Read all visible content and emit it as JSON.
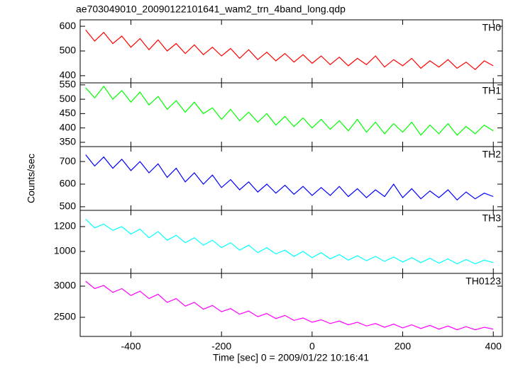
{
  "chart_data": [
    {
      "type": "line",
      "title": "ae703049010_20090122101641_wam2_trn_4band_long.qdp",
      "x": [
        -500,
        -480,
        -460,
        -440,
        -420,
        -400,
        -380,
        -360,
        -340,
        -320,
        -300,
        -280,
        -260,
        -240,
        -220,
        -200,
        -180,
        -160,
        -140,
        -120,
        -100,
        -80,
        -60,
        -40,
        -20,
        0,
        20,
        40,
        60,
        80,
        100,
        120,
        140,
        160,
        180,
        200,
        220,
        240,
        260,
        280,
        300,
        320,
        340,
        360,
        380,
        400
      ],
      "series": [
        {
          "name": "TH0",
          "color": "#ff0000",
          "values": [
            585,
            540,
            575,
            530,
            560,
            515,
            550,
            505,
            545,
            500,
            530,
            490,
            525,
            485,
            515,
            480,
            510,
            470,
            505,
            465,
            495,
            460,
            490,
            455,
            485,
            450,
            480,
            445,
            475,
            440,
            470,
            445,
            480,
            435,
            465,
            440,
            470,
            430,
            460,
            435,
            465,
            430,
            455,
            425,
            460,
            440
          ]
        }
      ],
      "xlim": [
        -512,
        420
      ],
      "xticks": [
        -400,
        -200,
        0,
        200,
        400
      ],
      "ylim": [
        371,
        626
      ],
      "yticks": [
        400,
        500,
        600
      ]
    },
    {
      "type": "line",
      "x": [
        -500,
        -480,
        -460,
        -440,
        -420,
        -400,
        -380,
        -360,
        -340,
        -320,
        -300,
        -280,
        -260,
        -240,
        -220,
        -200,
        -180,
        -160,
        -140,
        -120,
        -100,
        -80,
        -60,
        -40,
        -20,
        0,
        20,
        40,
        60,
        80,
        100,
        120,
        140,
        160,
        180,
        200,
        220,
        240,
        260,
        280,
        300,
        320,
        340,
        360,
        380,
        400
      ],
      "series": [
        {
          "name": "TH1",
          "color": "#00ff00",
          "values": [
            540,
            505,
            545,
            500,
            530,
            490,
            525,
            480,
            510,
            465,
            495,
            455,
            490,
            450,
            470,
            430,
            465,
            425,
            455,
            420,
            450,
            410,
            440,
            405,
            435,
            400,
            430,
            395,
            425,
            390,
            430,
            385,
            420,
            380,
            415,
            385,
            420,
            375,
            410,
            380,
            415,
            375,
            405,
            380,
            410,
            390
          ]
        }
      ],
      "xlim": [
        -512,
        420
      ],
      "xticks": [
        -400,
        -200,
        0,
        200,
        400
      ],
      "ylim": [
        335,
        557
      ],
      "yticks": [
        350,
        400,
        450,
        500,
        550
      ]
    },
    {
      "type": "line",
      "ylabel": "Counts/sec",
      "x": [
        -500,
        -480,
        -460,
        -440,
        -420,
        -400,
        -380,
        -360,
        -340,
        -320,
        -300,
        -280,
        -260,
        -240,
        -220,
        -200,
        -180,
        -160,
        -140,
        -120,
        -100,
        -80,
        -60,
        -40,
        -20,
        0,
        20,
        40,
        60,
        80,
        100,
        120,
        140,
        160,
        180,
        200,
        220,
        240,
        260,
        280,
        300,
        320,
        340,
        360,
        380,
        400
      ],
      "series": [
        {
          "name": "TH2",
          "color": "#0000ff",
          "values": [
            730,
            680,
            720,
            670,
            710,
            660,
            700,
            650,
            690,
            630,
            670,
            610,
            650,
            600,
            640,
            585,
            620,
            575,
            610,
            565,
            600,
            560,
            595,
            555,
            590,
            550,
            585,
            550,
            590,
            545,
            580,
            540,
            575,
            545,
            600,
            540,
            580,
            535,
            570,
            540,
            575,
            530,
            565,
            535,
            560,
            545
          ]
        }
      ],
      "xlim": [
        -512,
        420
      ],
      "xticks": [
        -400,
        -200,
        0,
        200,
        400
      ],
      "ylim": [
        484,
        766
      ],
      "yticks": [
        500,
        600,
        700
      ]
    },
    {
      "type": "line",
      "x": [
        -500,
        -480,
        -460,
        -440,
        -420,
        -400,
        -380,
        -360,
        -340,
        -320,
        -300,
        -280,
        -260,
        -240,
        -220,
        -200,
        -180,
        -160,
        -140,
        -120,
        -100,
        -80,
        -60,
        -40,
        -20,
        0,
        20,
        40,
        60,
        80,
        100,
        120,
        140,
        160,
        180,
        200,
        220,
        240,
        260,
        280,
        300,
        320,
        340,
        360,
        380,
        400
      ],
      "series": [
        {
          "name": "TH3",
          "color": "#00ffff",
          "values": [
            1260,
            1190,
            1220,
            1170,
            1200,
            1140,
            1180,
            1110,
            1160,
            1090,
            1130,
            1070,
            1110,
            1050,
            1090,
            1030,
            1070,
            1010,
            1050,
            990,
            1030,
            980,
            1010,
            960,
            1000,
            950,
            990,
            940,
            975,
            930,
            965,
            925,
            960,
            920,
            955,
            915,
            950,
            910,
            945,
            905,
            940,
            900,
            935,
            900,
            930,
            910
          ]
        }
      ],
      "xlim": [
        -512,
        420
      ],
      "xticks": [
        -400,
        -200,
        0,
        200,
        400
      ],
      "ylim": [
        823,
        1331
      ],
      "yticks": [
        1000,
        1200
      ]
    },
    {
      "type": "line",
      "xlabel": "Time [sec] 0 = 2009/01/22 10:16:41",
      "x": [
        -500,
        -480,
        -460,
        -440,
        -420,
        -400,
        -380,
        -360,
        -340,
        -320,
        -300,
        -280,
        -260,
        -240,
        -220,
        -200,
        -180,
        -160,
        -140,
        -120,
        -100,
        -80,
        -60,
        -40,
        -20,
        0,
        20,
        40,
        60,
        80,
        100,
        120,
        140,
        160,
        180,
        200,
        220,
        240,
        260,
        280,
        300,
        320,
        340,
        360,
        380,
        400
      ],
      "series": [
        {
          "name": "TH0123",
          "color": "#ff00ff",
          "values": [
            3080,
            2960,
            3010,
            2900,
            2960,
            2850,
            2920,
            2800,
            2870,
            2740,
            2800,
            2680,
            2740,
            2630,
            2690,
            2590,
            2640,
            2550,
            2600,
            2510,
            2560,
            2480,
            2530,
            2450,
            2490,
            2420,
            2460,
            2400,
            2440,
            2380,
            2420,
            2360,
            2400,
            2340,
            2390,
            2330,
            2380,
            2320,
            2370,
            2310,
            2360,
            2300,
            2350,
            2300,
            2340,
            2310
          ]
        }
      ],
      "xlim": [
        -512,
        420
      ],
      "xticks": [
        -400,
        -200,
        0,
        200,
        400
      ],
      "ylim": [
        2193,
        3205
      ],
      "yticks": [
        2500,
        3000
      ]
    }
  ]
}
